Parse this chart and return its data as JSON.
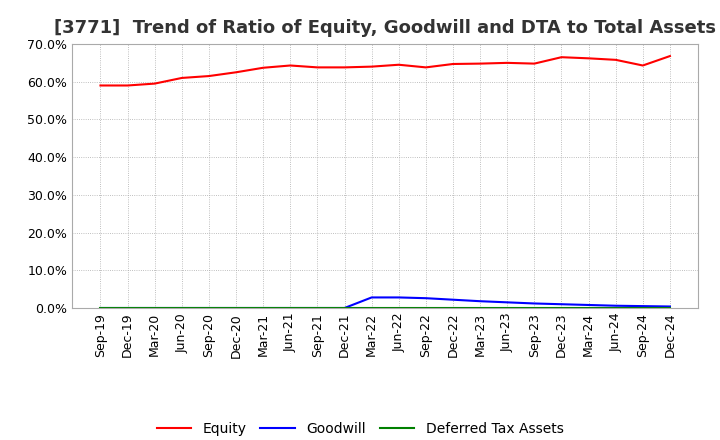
{
  "title": "[3771]  Trend of Ratio of Equity, Goodwill and DTA to Total Assets",
  "ylim": [
    0.0,
    0.7
  ],
  "yticks": [
    0.0,
    0.1,
    0.2,
    0.3,
    0.4,
    0.5,
    0.6,
    0.7
  ],
  "x_labels": [
    "Sep-19",
    "Dec-19",
    "Mar-20",
    "Jun-20",
    "Sep-20",
    "Dec-20",
    "Mar-21",
    "Jun-21",
    "Sep-21",
    "Dec-21",
    "Mar-22",
    "Jun-22",
    "Sep-22",
    "Dec-22",
    "Mar-23",
    "Jun-23",
    "Sep-23",
    "Dec-23",
    "Mar-24",
    "Jun-24",
    "Sep-24",
    "Dec-24"
  ],
  "equity": [
    0.59,
    0.59,
    0.595,
    0.61,
    0.615,
    0.625,
    0.637,
    0.643,
    0.638,
    0.638,
    0.64,
    0.645,
    0.638,
    0.647,
    0.648,
    0.65,
    0.648,
    0.665,
    0.662,
    0.658,
    0.643,
    0.668
  ],
  "goodwill": [
    0.0,
    0.0,
    0.0,
    0.0,
    0.0,
    0.0,
    0.0,
    0.0,
    0.0,
    0.0,
    0.028,
    0.028,
    0.026,
    0.022,
    0.018,
    0.015,
    0.012,
    0.01,
    0.008,
    0.006,
    0.005,
    0.004
  ],
  "dta": [
    0.0,
    0.0,
    0.0,
    0.0,
    0.0,
    0.0,
    0.0,
    0.0,
    0.0,
    0.0,
    0.0,
    0.0,
    0.0,
    0.0,
    0.0,
    0.0,
    0.0,
    0.0,
    0.0,
    0.0,
    0.0,
    0.0
  ],
  "equity_color": "#ff0000",
  "goodwill_color": "#0000ff",
  "dta_color": "#008000",
  "background_color": "#ffffff",
  "grid_color": "#aaaaaa",
  "title_fontsize": 13,
  "tick_fontsize": 9,
  "legend_fontsize": 10
}
